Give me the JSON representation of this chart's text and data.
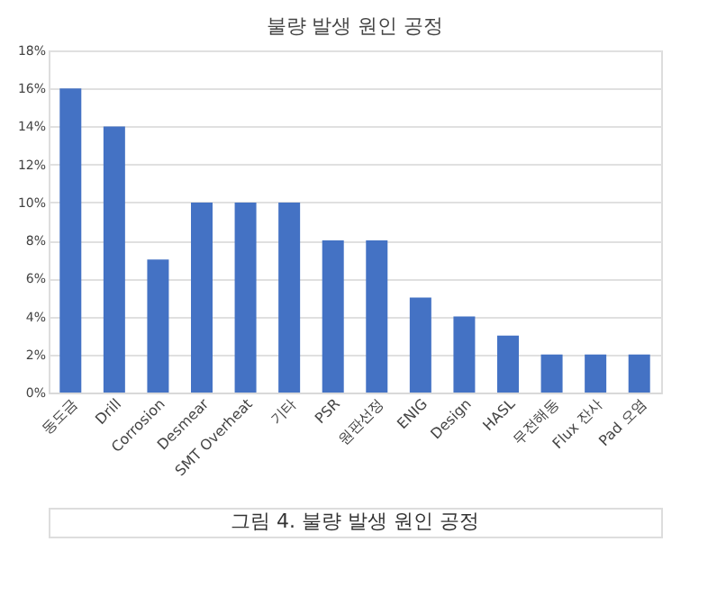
{
  "chart_data": {
    "type": "bar",
    "title": "불량 발생 원인 공정",
    "categories": [
      "동도금",
      "Drill",
      "Corrosion",
      "Desmear",
      "SMT Overheat",
      "기타",
      "PSR",
      "원판선정",
      "ENIG",
      "Design",
      "HASL",
      "무전해동",
      "Flux 잔사",
      "Pad 오염"
    ],
    "values": [
      16,
      14,
      7,
      10,
      10,
      10,
      8,
      8,
      5,
      4,
      3,
      2,
      2,
      2
    ],
    "color": "#4472c4",
    "ylim": [
      0,
      18
    ],
    "yticks": [
      {
        "value": 0,
        "label": "0%"
      },
      {
        "value": 2,
        "label": "2%"
      },
      {
        "value": 4,
        "label": "4%"
      },
      {
        "value": 6,
        "label": "6%"
      },
      {
        "value": 8,
        "label": "8%"
      },
      {
        "value": 10,
        "label": "10%"
      },
      {
        "value": 12,
        "label": "12%"
      },
      {
        "value": 14,
        "label": "14%"
      },
      {
        "value": 16,
        "label": "16%"
      },
      {
        "value": 18,
        "label": "18%"
      }
    ],
    "grid": "y",
    "annotations": [
      "그림 4. 불량 발생 원인 공정"
    ]
  }
}
